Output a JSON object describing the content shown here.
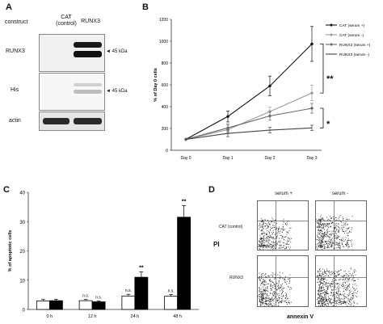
{
  "panel_a": {
    "letter": "A",
    "header_construct": "construct",
    "col1_label_line1": "CAT",
    "col1_label_line2": "(control)",
    "col2_label": "RUNX3",
    "rows": [
      {
        "label": "RUNX3",
        "marker": "◄ 45 kDa"
      },
      {
        "label": "His",
        "marker": "◄ 45 kDa"
      },
      {
        "label": "actin",
        "marker": ""
      }
    ]
  },
  "panel_b": {
    "letter": "B",
    "significance_upper": "**",
    "significance_lower": "*"
  },
  "panel_c": {
    "letter": "C",
    "significance_labels": [
      "n.s.",
      "n.s.",
      "n.s.",
      "**",
      "n.s.",
      "**"
    ]
  },
  "panel_d": {
    "letter": "D",
    "col_labels": [
      "serum +",
      "serum -"
    ],
    "row_labels": [
      "CAT (control)",
      "RUNX3"
    ],
    "ylabel": "PI",
    "xlabel": "annexin V"
  },
  "chart_data": [
    {
      "type": "line",
      "panel": "B",
      "x": [
        "Day 0",
        "Day 1",
        "Day 2",
        "Day 3"
      ],
      "ylabel": "% of Day 0 cells",
      "ylim": [
        0,
        1200
      ],
      "yticks": [
        0,
        200,
        400,
        600,
        800,
        1000,
        1200
      ],
      "legend_position": "right",
      "series": [
        {
          "name": "CAT (serum +)",
          "values": [
            100,
            310,
            590,
            975
          ],
          "errors": [
            0,
            50,
            90,
            160
          ],
          "color": "#111111",
          "marker": "diamond"
        },
        {
          "name": "CAT (serum -)",
          "values": [
            100,
            190,
            355,
            525
          ],
          "errors": [
            0,
            40,
            40,
            70
          ],
          "color": "#9a9a9a",
          "marker": "diamond"
        },
        {
          "name": "RUNX3 (serum +)",
          "values": [
            100,
            205,
            315,
            385
          ],
          "errors": [
            0,
            35,
            40,
            45
          ],
          "color": "#666666",
          "marker": "diamond"
        },
        {
          "name": "RUNX3 (serum -)",
          "values": [
            100,
            155,
            185,
            205
          ],
          "errors": [
            0,
            30,
            25,
            25
          ],
          "color": "#444444",
          "marker": "none"
        }
      ]
    },
    {
      "type": "bar",
      "panel": "C",
      "categories": [
        "0 h",
        "12 h",
        "24 h",
        "48 h"
      ],
      "ylabel": "% of apoptotic cells",
      "ylim": [
        0,
        40
      ],
      "yticks": [
        0,
        10,
        20,
        30,
        40
      ],
      "series": [
        {
          "name": "",
          "color": "#ffffff",
          "values": [
            2.9,
            3.0,
            4.6,
            4.5
          ],
          "errors": [
            0.5,
            0.4,
            0.6,
            0.6
          ]
        },
        {
          "name": "",
          "color": "#000000",
          "values": [
            3.0,
            2.6,
            11.0,
            31.5
          ],
          "errors": [
            0.5,
            0.3,
            1.8,
            4.0
          ]
        }
      ]
    }
  ]
}
